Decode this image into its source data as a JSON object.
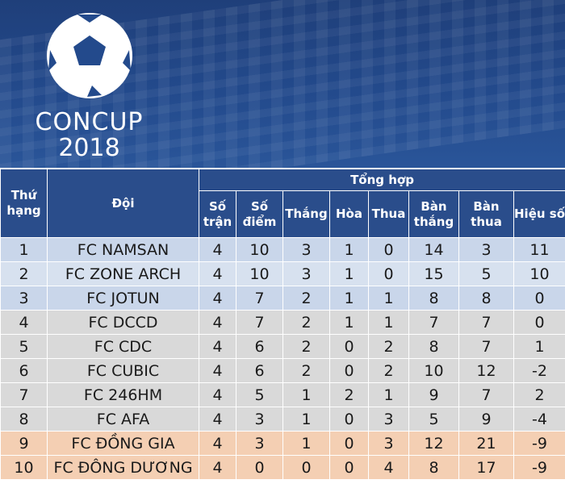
{
  "logo": {
    "name": "CONCUP",
    "year": "2018",
    "icon": "soccer-ball-icon"
  },
  "table": {
    "group_header": "Tổng hợp",
    "headers": {
      "rank": "Thứ hạng",
      "team": "Đội",
      "played": "Số trận",
      "points": "Số điểm",
      "won": "Thắng",
      "drawn": "Hòa",
      "lost": "Thua",
      "goals_for": "Bàn thắng",
      "goals_against": "Bàn thua",
      "goal_diff": "Hiệu số"
    },
    "rows": [
      {
        "rank": "1",
        "team": "FC NAMSAN",
        "played": "4",
        "points": "10",
        "won": "3",
        "drawn": "1",
        "lost": "0",
        "goals_for": "14",
        "goals_against": "3",
        "goal_diff": "11"
      },
      {
        "rank": "2",
        "team": "FC ZONE ARCH",
        "played": "4",
        "points": "10",
        "won": "3",
        "drawn": "1",
        "lost": "0",
        "goals_for": "15",
        "goals_against": "5",
        "goal_diff": "10"
      },
      {
        "rank": "3",
        "team": "FC JOTUN",
        "played": "4",
        "points": "7",
        "won": "2",
        "drawn": "1",
        "lost": "1",
        "goals_for": "8",
        "goals_against": "8",
        "goal_diff": "0"
      },
      {
        "rank": "4",
        "team": "FC DCCD",
        "played": "4",
        "points": "7",
        "won": "2",
        "drawn": "1",
        "lost": "1",
        "goals_for": "7",
        "goals_against": "7",
        "goal_diff": "0"
      },
      {
        "rank": "5",
        "team": "FC CDC",
        "played": "4",
        "points": "6",
        "won": "2",
        "drawn": "0",
        "lost": "2",
        "goals_for": "8",
        "goals_against": "7",
        "goal_diff": "1"
      },
      {
        "rank": "6",
        "team": "FC CUBIC",
        "played": "4",
        "points": "6",
        "won": "2",
        "drawn": "0",
        "lost": "2",
        "goals_for": "10",
        "goals_against": "12",
        "goal_diff": "-2"
      },
      {
        "rank": "7",
        "team": "FC 246HM",
        "played": "4",
        "points": "5",
        "won": "1",
        "drawn": "2",
        "lost": "1",
        "goals_for": "9",
        "goals_against": "7",
        "goal_diff": "2"
      },
      {
        "rank": "8",
        "team": "FC AFA",
        "played": "4",
        "points": "3",
        "won": "1",
        "drawn": "0",
        "lost": "3",
        "goals_for": "5",
        "goals_against": "9",
        "goal_diff": "-4"
      },
      {
        "rank": "9",
        "team": "FC ĐỒNG GIA",
        "played": "4",
        "points": "3",
        "won": "1",
        "drawn": "0",
        "lost": "3",
        "goals_for": "12",
        "goals_against": "21",
        "goal_diff": "-9"
      },
      {
        "rank": "10",
        "team": "FC ĐÔNG DƯƠNG",
        "played": "4",
        "points": "0",
        "won": "0",
        "drawn": "0",
        "lost": "4",
        "goals_for": "8",
        "goals_against": "17",
        "goal_diff": "-9"
      }
    ]
  },
  "colors": {
    "header_bg": "#2a4d8b",
    "banner_bg": "#234a8c",
    "top_zone": "#c9d6ea",
    "mid_zone": "#d9d9d9",
    "bottom_zone": "#f4cfb3"
  }
}
